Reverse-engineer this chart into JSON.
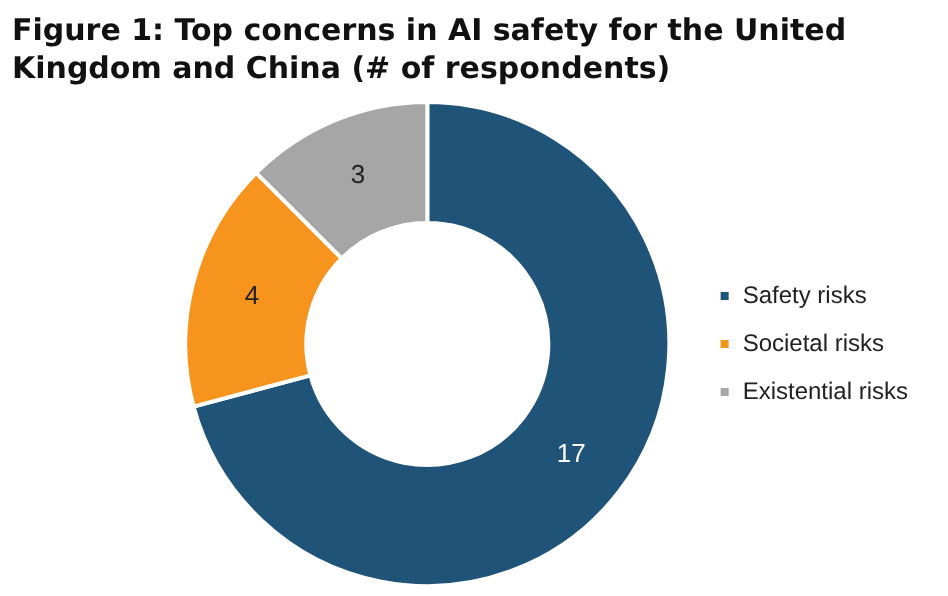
{
  "chart_data": {
    "type": "donut",
    "title": "Figure 1: Top concerns in AI safety for the United Kingdom and China (# of respondents)",
    "categories": [
      "Safety risks",
      "Societal risks",
      "Existential risks"
    ],
    "values": [
      17,
      4,
      3
    ],
    "colors": [
      "#1f5478",
      "#f7941d",
      "#a6a6a6"
    ],
    "data_labels": true,
    "legend": "right"
  }
}
